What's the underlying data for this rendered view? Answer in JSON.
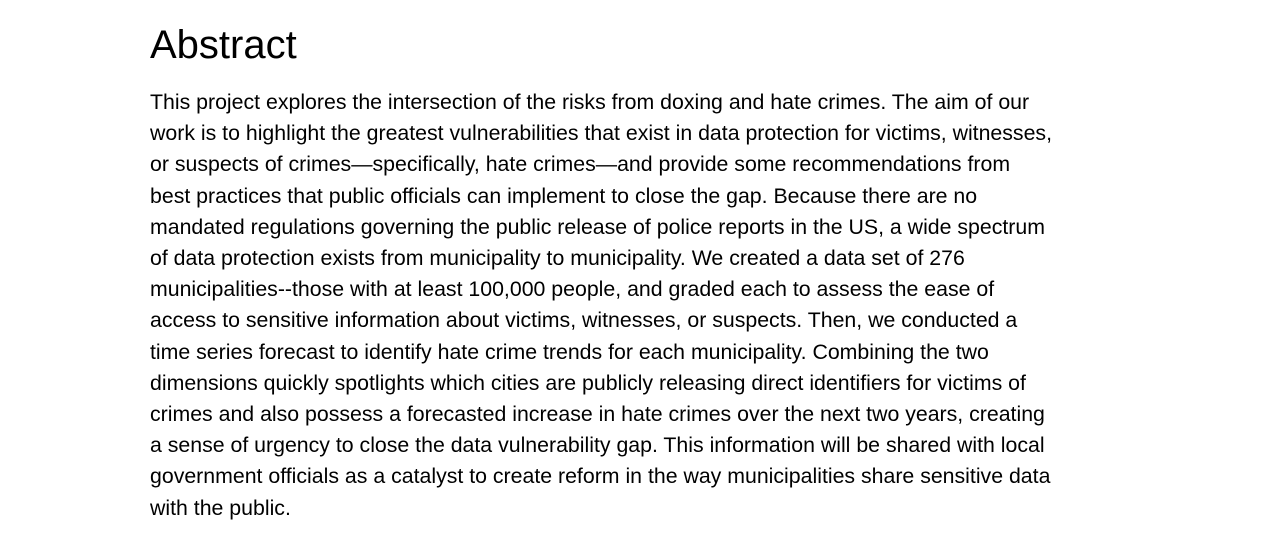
{
  "heading": "Abstract",
  "abstract_lines": [
    "This project explores the intersection of the risks from doxing and hate crimes. The aim of our",
    "work is to highlight the greatest vulnerabilities that exist in data protection for victims, witnesses,",
    "or suspects of crimes—specifically, hate crimes—and provide some recommendations from",
    "best practices that public officials can implement to close the gap. Because there are no",
    "mandated regulations governing the public release of police reports in the US, a wide spectrum",
    "of data protection exists from municipality to municipality. We created a data set of 276",
    "municipalities--those with at least 100,000 people, and graded each to assess the ease of",
    "access to sensitive information about victims, witnesses, or suspects. Then, we conducted a",
    "time series forecast to identify hate crime trends for each municipality. Combining the two",
    "dimensions quickly spotlights which cities are publicly releasing direct identifiers for victims of",
    "crimes and also possess a forecasted increase in hate crimes over the next two years, creating",
    "a sense of urgency to close the data vulnerability gap. This information will be shared with local",
    "government officials as a catalyst to create reform in the way municipalities share sensitive data",
    "with the public."
  ]
}
